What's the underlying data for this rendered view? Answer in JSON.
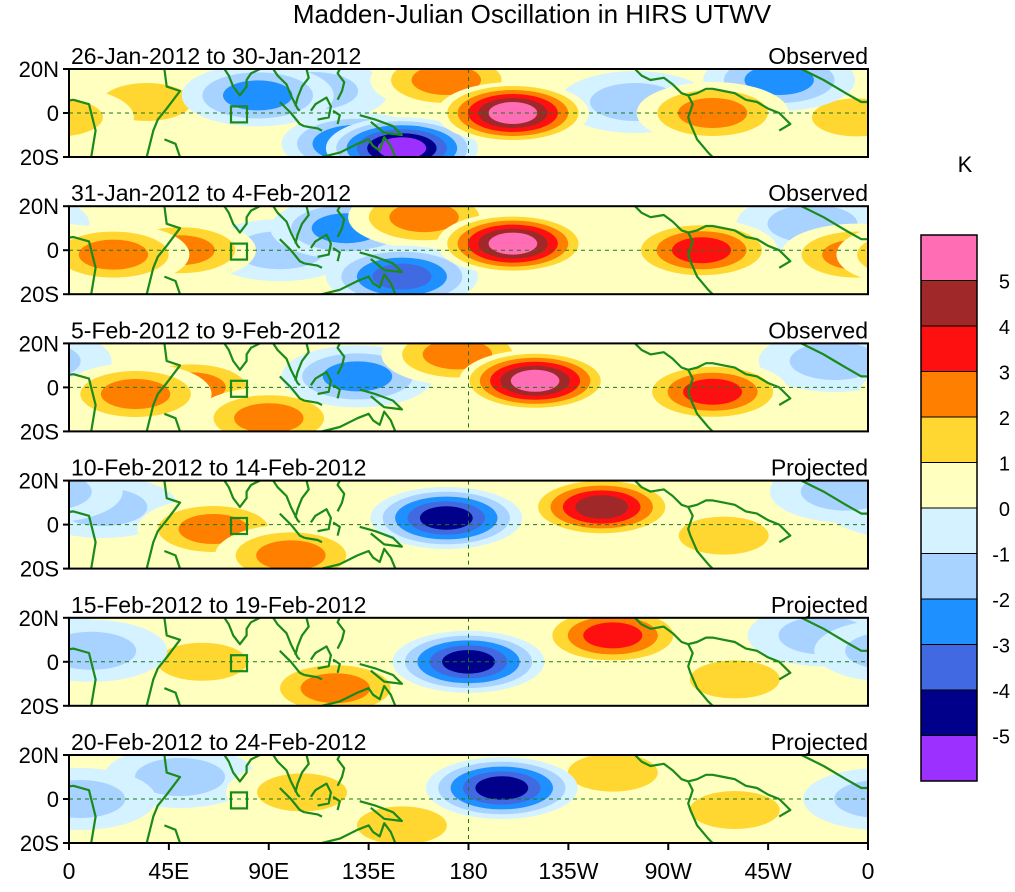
{
  "chart_data": {
    "type": "heatmap",
    "title": "Madden-Julian Oscillation in HIRS UTWV",
    "units": "K",
    "x_ticks": [
      "0",
      "45E",
      "90E",
      "135E",
      "180",
      "135W",
      "90W",
      "45W",
      "0"
    ],
    "y_ticks": [
      "20N",
      "0",
      "20S"
    ],
    "colorbar": {
      "levels": [
        "5",
        "4",
        "3",
        "2",
        "1",
        "0",
        "-1",
        "-2",
        "-3",
        "-4",
        "-5"
      ],
      "colors": [
        "#ff6eb4",
        "#a02828",
        "#ff1010",
        "#ff7f00",
        "#ffd730",
        "#ffffc0",
        "#d4f2ff",
        "#a8d2ff",
        "#1e90ff",
        "#4169e1",
        "#00008b",
        "#9b30ff"
      ]
    },
    "panels": [
      {
        "period": "26-Jan-2012 to 30-Jan-2012",
        "status": "Observed",
        "anomalies": [
          {
            "lon": 0,
            "lat": 0,
            "value": 1.5
          },
          {
            "lon": 35,
            "lat": 5,
            "value": 1.5
          },
          {
            "lon": 85,
            "lat": 8,
            "value": -2.5
          },
          {
            "lon": 110,
            "lat": 10,
            "value": -2
          },
          {
            "lon": 130,
            "lat": -14,
            "value": -3.5
          },
          {
            "lon": 150,
            "lat": -16,
            "value": -5.5
          },
          {
            "lon": 170,
            "lat": 15,
            "value": 3
          },
          {
            "lon": 200,
            "lat": 0,
            "value": 5.5
          },
          {
            "lon": 255,
            "lat": 5,
            "value": -1.5
          },
          {
            "lon": 290,
            "lat": 0,
            "value": 3
          },
          {
            "lon": 320,
            "lat": 15,
            "value": -2.5
          },
          {
            "lon": 355,
            "lat": -2,
            "value": 2
          }
        ]
      },
      {
        "period": "31-Jan-2012 to 4-Feb-2012",
        "status": "Observed",
        "anomalies": [
          {
            "lon": 20,
            "lat": -2,
            "value": 3
          },
          {
            "lon": 50,
            "lat": 0,
            "value": 2.5
          },
          {
            "lon": 95,
            "lat": 0,
            "value": -1.5
          },
          {
            "lon": 125,
            "lat": 10,
            "value": -2.5
          },
          {
            "lon": 150,
            "lat": -12,
            "value": -4
          },
          {
            "lon": 160,
            "lat": 15,
            "value": 3
          },
          {
            "lon": 200,
            "lat": 3,
            "value": 5.5
          },
          {
            "lon": 285,
            "lat": 0,
            "value": 3.5
          },
          {
            "lon": 335,
            "lat": 12,
            "value": -2
          },
          {
            "lon": 355,
            "lat": -2,
            "value": 2.5
          }
        ]
      },
      {
        "period": "5-Feb-2012 to 9-Feb-2012",
        "status": "Observed",
        "anomalies": [
          {
            "lon": 30,
            "lat": -3,
            "value": 3
          },
          {
            "lon": 55,
            "lat": 0,
            "value": 2.5
          },
          {
            "lon": 90,
            "lat": -14,
            "value": 2.5
          },
          {
            "lon": 130,
            "lat": 5,
            "value": -2.5
          },
          {
            "lon": 175,
            "lat": 15,
            "value": 2.5
          },
          {
            "lon": 210,
            "lat": 3,
            "value": 5.5
          },
          {
            "lon": 290,
            "lat": -2,
            "value": 3.5
          },
          {
            "lon": 345,
            "lat": 12,
            "value": -2
          }
        ]
      },
      {
        "period": "10-Feb-2012 to 14-Feb-2012",
        "status": "Projected",
        "anomalies": [
          {
            "lon": 15,
            "lat": 8,
            "value": -1.5
          },
          {
            "lon": 65,
            "lat": -2,
            "value": 3
          },
          {
            "lon": 100,
            "lat": -14,
            "value": 3
          },
          {
            "lon": 170,
            "lat": 3,
            "value": -4.5
          },
          {
            "lon": 240,
            "lat": 8,
            "value": 4.5
          },
          {
            "lon": 295,
            "lat": -5,
            "value": 2
          },
          {
            "lon": 350,
            "lat": 15,
            "value": -1.5
          }
        ]
      },
      {
        "period": "15-Feb-2012 to 19-Feb-2012",
        "status": "Projected",
        "anomalies": [
          {
            "lon": 10,
            "lat": 5,
            "value": -2
          },
          {
            "lon": 60,
            "lat": 0,
            "value": 1.5
          },
          {
            "lon": 120,
            "lat": -12,
            "value": 2.5
          },
          {
            "lon": 180,
            "lat": 0,
            "value": -4.5
          },
          {
            "lon": 245,
            "lat": 12,
            "value": 3.5
          },
          {
            "lon": 300,
            "lat": -8,
            "value": 1.5
          },
          {
            "lon": 340,
            "lat": 12,
            "value": -1.5
          }
        ]
      },
      {
        "period": "20-Feb-2012 to 24-Feb-2012",
        "status": "Projected",
        "anomalies": [
          {
            "lon": 5,
            "lat": 0,
            "value": -2
          },
          {
            "lon": 50,
            "lat": 10,
            "value": -1.5
          },
          {
            "lon": 105,
            "lat": 3,
            "value": 2
          },
          {
            "lon": 150,
            "lat": -12,
            "value": 2
          },
          {
            "lon": 195,
            "lat": 5,
            "value": -4.5
          },
          {
            "lon": 245,
            "lat": 12,
            "value": 2
          },
          {
            "lon": 300,
            "lat": -5,
            "value": 1.5
          }
        ]
      }
    ]
  }
}
